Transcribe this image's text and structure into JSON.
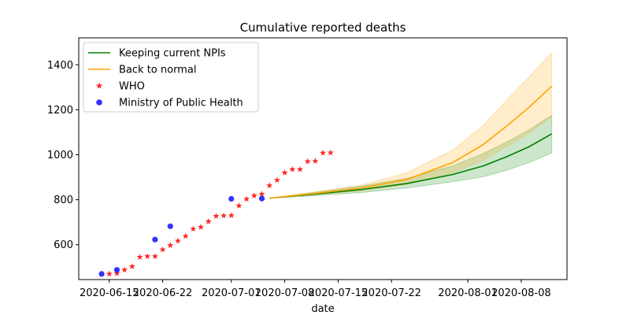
{
  "chart_data": {
    "type": "line",
    "title": "Cumulative reported deaths",
    "xlabel": "date",
    "ylabel": "",
    "x_ticks": [
      "2020-06-15",
      "2020-06-22",
      "2020-07-01",
      "2020-07-08",
      "2020-07-15",
      "2020-07-22",
      "2020-08-01",
      "2020-08-08"
    ],
    "y_ticks": [
      600,
      800,
      1000,
      1200,
      1400
    ],
    "xlim": [
      "2020-06-11",
      "2020-08-14"
    ],
    "ylim": [
      445,
      1520
    ],
    "grid": false,
    "legend_position": "top-left",
    "series": [
      {
        "name": "Keeping current NPIs",
        "kind": "line",
        "color": "#008000",
        "band_color": "#008000",
        "x": [
          "2020-07-06",
          "2020-07-12",
          "2020-07-18",
          "2020-07-24",
          "2020-07-30",
          "2020-08-03",
          "2020-08-06",
          "2020-08-09",
          "2020-08-12"
        ],
        "values": [
          807,
          825,
          845,
          872,
          912,
          950,
          990,
          1035,
          1093
        ],
        "lower": [
          807,
          818,
          832,
          852,
          880,
          902,
          930,
          965,
          1008
        ],
        "upper": [
          807,
          833,
          860,
          895,
          950,
          1005,
          1055,
          1110,
          1175
        ]
      },
      {
        "name": "Back to normal",
        "kind": "line",
        "color": "#ffa500",
        "band_color": "#ffa500",
        "x": [
          "2020-07-06",
          "2020-07-12",
          "2020-07-18",
          "2020-07-24",
          "2020-07-30",
          "2020-08-03",
          "2020-08-06",
          "2020-08-09",
          "2020-08-12"
        ],
        "values": [
          807,
          828,
          852,
          890,
          965,
          1045,
          1125,
          1210,
          1305
        ],
        "lower": [
          807,
          822,
          840,
          868,
          920,
          975,
          1035,
          1095,
          1170
        ],
        "upper": [
          807,
          835,
          865,
          920,
          1020,
          1130,
          1240,
          1345,
          1455
        ]
      },
      {
        "name": "WHO",
        "kind": "scatter",
        "marker": "star",
        "color": "#ff0000",
        "x": [
          "2020-06-15",
          "2020-06-16",
          "2020-06-17",
          "2020-06-18",
          "2020-06-19",
          "2020-06-20",
          "2020-06-21",
          "2020-06-22",
          "2020-06-23",
          "2020-06-24",
          "2020-06-25",
          "2020-06-26",
          "2020-06-27",
          "2020-06-28",
          "2020-06-29",
          "2020-06-30",
          "2020-07-01",
          "2020-07-02",
          "2020-07-03",
          "2020-07-04",
          "2020-07-05",
          "2020-07-06",
          "2020-07-07",
          "2020-07-08",
          "2020-07-09",
          "2020-07-10",
          "2020-07-11",
          "2020-07-12",
          "2020-07-13",
          "2020-07-14"
        ],
        "values": [
          470,
          472,
          488,
          503,
          545,
          548,
          548,
          578,
          597,
          617,
          638,
          670,
          678,
          703,
          727,
          729,
          730,
          773,
          803,
          818,
          825,
          863,
          887,
          920,
          935,
          935,
          970,
          972,
          1008,
          1009
        ]
      },
      {
        "name": "Ministry of Public Health",
        "kind": "scatter",
        "marker": "circle",
        "color": "#0000ff",
        "x": [
          "2020-06-14",
          "2020-06-16",
          "2020-06-21",
          "2020-06-23",
          "2020-07-01",
          "2020-07-05"
        ],
        "values": [
          470,
          488,
          623,
          682,
          804,
          805
        ]
      }
    ]
  }
}
